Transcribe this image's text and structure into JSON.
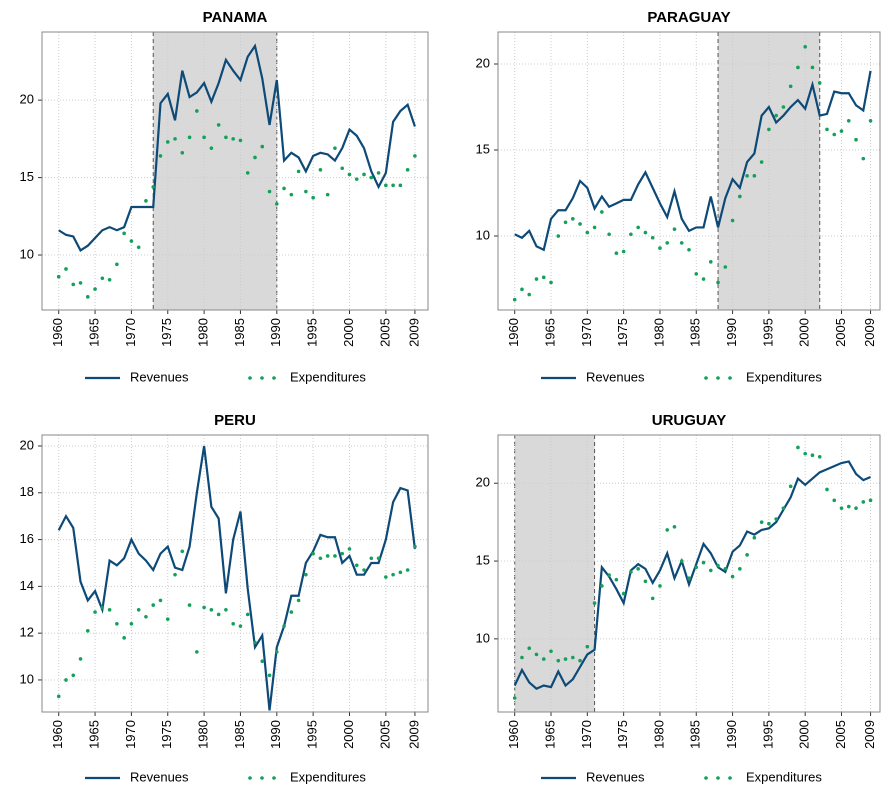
{
  "chart_data": [
    {
      "type": "line",
      "title": "PANAMA",
      "x": [
        1960,
        1961,
        1962,
        1963,
        1964,
        1965,
        1966,
        1967,
        1968,
        1969,
        1970,
        1971,
        1972,
        1973,
        1974,
        1975,
        1976,
        1977,
        1978,
        1979,
        1980,
        1981,
        1982,
        1983,
        1984,
        1985,
        1986,
        1987,
        1988,
        1989,
        1990,
        1991,
        1992,
        1993,
        1994,
        1995,
        1996,
        1997,
        1998,
        1999,
        2000,
        2001,
        2002,
        2003,
        2004,
        2005,
        2006,
        2007,
        2008,
        2009
      ],
      "xlim": [
        1957.7,
        2010.8
      ],
      "xticks": [
        1960,
        1965,
        1970,
        1975,
        1980,
        1985,
        1990,
        1995,
        2000,
        2005,
        2009
      ],
      "ylim": [
        6.45,
        24.4
      ],
      "yticks": [
        10,
        15,
        20
      ],
      "grid": true,
      "shaded_xrange": [
        1973,
        1990
      ],
      "series": [
        {
          "name": "Revenues",
          "color": "#0d4a78",
          "style": "line",
          "values": [
            11.6,
            11.3,
            11.2,
            10.3,
            10.6,
            11.1,
            11.6,
            11.8,
            11.6,
            11.8,
            13.1,
            13.1,
            13.1,
            13.1,
            19.8,
            20.4,
            18.7,
            21.9,
            20.2,
            20.5,
            21.1,
            19.9,
            21.1,
            22.6,
            21.9,
            21.3,
            22.8,
            23.5,
            21.4,
            18.4,
            21.3,
            16.1,
            16.6,
            16.3,
            15.4,
            16.4,
            16.6,
            16.5,
            16.1,
            16.9,
            18.1,
            17.7,
            16.9,
            15.4,
            14.4,
            15.3,
            18.6,
            19.3,
            19.7,
            18.3
          ]
        },
        {
          "name": "Expenditures",
          "color": "#13a05a",
          "style": "dots",
          "values": [
            8.6,
            9.1,
            8.1,
            8.2,
            7.3,
            7.8,
            8.5,
            8.4,
            9.4,
            11.4,
            10.9,
            10.5,
            13.5,
            14.4,
            16.4,
            17.3,
            17.5,
            16.6,
            17.6,
            19.3,
            17.6,
            16.9,
            18.4,
            17.6,
            17.5,
            17.4,
            15.3,
            16.3,
            17.0,
            14.1,
            13.3,
            14.3,
            13.9,
            15.4,
            14.1,
            13.7,
            15.5,
            13.9,
            16.9,
            15.6,
            15.2,
            14.9,
            15.2,
            15.0,
            15.3,
            14.5,
            14.5,
            14.5,
            15.5,
            16.4
          ]
        }
      ]
    },
    {
      "type": "line",
      "title": "PARAGUAY",
      "x": [
        1960,
        1961,
        1962,
        1963,
        1964,
        1965,
        1966,
        1967,
        1968,
        1969,
        1970,
        1971,
        1972,
        1973,
        1974,
        1975,
        1976,
        1977,
        1978,
        1979,
        1980,
        1981,
        1982,
        1983,
        1984,
        1985,
        1986,
        1987,
        1988,
        1989,
        1990,
        1991,
        1992,
        1993,
        1994,
        1995,
        1996,
        1997,
        1998,
        1999,
        2000,
        2001,
        2002,
        2003,
        2004,
        2005,
        2006,
        2007,
        2008,
        2009
      ],
      "xlim": [
        1957.7,
        2010.3
      ],
      "xticks": [
        1960,
        1965,
        1970,
        1975,
        1980,
        1985,
        1990,
        1995,
        2000,
        2005,
        2009
      ],
      "ylim": [
        5.7,
        21.86
      ],
      "yticks": [
        10,
        15,
        20
      ],
      "grid": true,
      "shaded_xrange": [
        1988,
        2002
      ],
      "series": [
        {
          "name": "Revenues",
          "color": "#0d4a78",
          "style": "line",
          "values": [
            10.1,
            9.9,
            10.3,
            9.4,
            9.2,
            11.0,
            11.5,
            11.5,
            12.2,
            13.2,
            12.8,
            11.6,
            12.3,
            11.7,
            11.9,
            12.1,
            12.1,
            13.0,
            13.7,
            12.8,
            11.9,
            11.1,
            12.6,
            11.0,
            10.3,
            10.5,
            10.5,
            12.3,
            10.5,
            12.2,
            13.3,
            12.8,
            14.3,
            14.8,
            17.0,
            17.5,
            16.6,
            17.0,
            17.5,
            17.9,
            17.4,
            18.8,
            17.0,
            17.1,
            18.4,
            18.3,
            18.3,
            17.6,
            17.3,
            19.6
          ]
        },
        {
          "name": "Expenditures",
          "color": "#13a05a",
          "style": "dots",
          "values": [
            6.3,
            6.9,
            6.6,
            7.5,
            7.6,
            7.3,
            10.0,
            10.8,
            11.0,
            10.7,
            10.2,
            10.5,
            11.4,
            10.1,
            9.0,
            9.1,
            10.1,
            10.5,
            10.2,
            9.9,
            9.3,
            9.6,
            10.4,
            9.6,
            9.2,
            7.8,
            7.5,
            8.5,
            7.3,
            8.2,
            10.9,
            12.3,
            13.5,
            13.5,
            14.3,
            16.2,
            17.0,
            17.5,
            18.7,
            19.8,
            21.0,
            19.8,
            18.9,
            16.2,
            15.9,
            16.1,
            16.7,
            15.6,
            14.5,
            16.7
          ]
        }
      ]
    },
    {
      "type": "line",
      "title": "PERU",
      "x": [
        1960,
        1961,
        1962,
        1963,
        1964,
        1965,
        1966,
        1967,
        1968,
        1969,
        1970,
        1971,
        1972,
        1973,
        1974,
        1975,
        1976,
        1977,
        1978,
        1979,
        1980,
        1981,
        1982,
        1983,
        1984,
        1985,
        1986,
        1987,
        1988,
        1989,
        1990,
        1991,
        1992,
        1993,
        1994,
        1995,
        1996,
        1997,
        1998,
        1999,
        2000,
        2001,
        2002,
        2003,
        2004,
        2005,
        2006,
        2007,
        2008,
        2009
      ],
      "xlim": [
        1957.7,
        2010.8
      ],
      "xticks": [
        1960,
        1965,
        1970,
        1975,
        1980,
        1985,
        1990,
        1995,
        2000,
        2005,
        2009
      ],
      "ylim": [
        8.63,
        20.47
      ],
      "yticks": [
        10,
        12,
        14,
        16,
        18,
        20
      ],
      "grid": true,
      "series": [
        {
          "name": "Revenues",
          "color": "#0d4a78",
          "style": "line",
          "values": [
            16.4,
            17.0,
            16.5,
            14.2,
            13.4,
            13.8,
            13.0,
            15.1,
            14.9,
            15.2,
            16.0,
            15.4,
            15.1,
            14.7,
            15.4,
            15.7,
            14.8,
            14.7,
            15.7,
            18.0,
            20.0,
            17.4,
            16.9,
            13.7,
            16.0,
            17.2,
            13.9,
            11.4,
            11.9,
            8.7,
            11.4,
            12.3,
            13.6,
            13.6,
            15.0,
            15.5,
            16.2,
            16.1,
            16.1,
            15.0,
            15.3,
            14.5,
            14.5,
            15.0,
            15.0,
            16.0,
            17.6,
            18.2,
            18.1,
            15.6
          ]
        },
        {
          "name": "Expenditures",
          "color": "#13a05a",
          "style": "dots",
          "values": [
            9.3,
            10.0,
            10.2,
            10.9,
            12.1,
            12.9,
            13.1,
            13.0,
            12.4,
            11.8,
            12.4,
            13.0,
            12.7,
            13.2,
            13.4,
            12.6,
            14.5,
            15.5,
            13.2,
            11.2,
            13.1,
            13.0,
            12.8,
            13.0,
            12.4,
            12.3,
            12.8,
            11.6,
            10.8,
            10.2,
            11.2,
            12.3,
            12.9,
            13.4,
            14.5,
            15.4,
            15.2,
            15.3,
            15.3,
            15.4,
            15.6,
            14.9,
            14.7,
            15.2,
            15.2,
            14.4,
            14.5,
            14.6,
            14.7,
            15.7
          ]
        }
      ]
    },
    {
      "type": "line",
      "title": "URUGUAY",
      "x": [
        1960,
        1961,
        1962,
        1963,
        1964,
        1965,
        1966,
        1967,
        1968,
        1969,
        1970,
        1971,
        1972,
        1973,
        1974,
        1975,
        1976,
        1977,
        1978,
        1979,
        1980,
        1981,
        1982,
        1983,
        1984,
        1985,
        1986,
        1987,
        1988,
        1989,
        1990,
        1991,
        1992,
        1993,
        1994,
        1995,
        1996,
        1997,
        1998,
        1999,
        2000,
        2001,
        2002,
        2003,
        2004,
        2005,
        2006,
        2007,
        2008,
        2009
      ],
      "xlim": [
        1957.7,
        2010.3
      ],
      "xticks": [
        1960,
        1965,
        1970,
        1975,
        1980,
        1985,
        1990,
        1995,
        2000,
        2005,
        2009
      ],
      "ylim": [
        5.3,
        23.1
      ],
      "yticks": [
        10,
        15,
        20
      ],
      "grid": true,
      "shaded_xrange": [
        1960,
        1971
      ],
      "series": [
        {
          "name": "Revenues",
          "color": "#0d4a78",
          "style": "line",
          "values": [
            7.0,
            8.0,
            7.2,
            6.8,
            7.0,
            6.9,
            7.9,
            7.0,
            7.4,
            8.2,
            9.0,
            9.3,
            14.6,
            14.0,
            13.2,
            12.3,
            14.4,
            14.8,
            14.5,
            13.6,
            14.4,
            15.5,
            13.9,
            15.0,
            13.5,
            14.8,
            16.1,
            15.5,
            14.6,
            14.3,
            15.6,
            16.0,
            16.9,
            16.7,
            17.0,
            17.1,
            17.5,
            18.3,
            19.1,
            20.3,
            19.9,
            20.3,
            20.7,
            20.9,
            21.1,
            21.3,
            21.4,
            20.6,
            20.2,
            20.4
          ]
        },
        {
          "name": "Expenditures",
          "color": "#13a05a",
          "style": "dots",
          "values": [
            6.2,
            8.8,
            9.4,
            9.0,
            8.7,
            9.2,
            8.6,
            8.7,
            8.8,
            8.6,
            9.5,
            12.3,
            13.4,
            14.1,
            13.8,
            12.9,
            14.3,
            14.5,
            13.7,
            12.6,
            13.4,
            17.0,
            17.2,
            15.0,
            13.9,
            14.6,
            14.9,
            14.4,
            14.7,
            14.5,
            14.0,
            14.5,
            15.4,
            16.5,
            17.5,
            17.4,
            17.7,
            18.4,
            19.8,
            22.3,
            21.9,
            21.8,
            21.7,
            19.6,
            18.9,
            18.4,
            18.5,
            18.4,
            18.8,
            18.9
          ]
        }
      ]
    }
  ]
}
